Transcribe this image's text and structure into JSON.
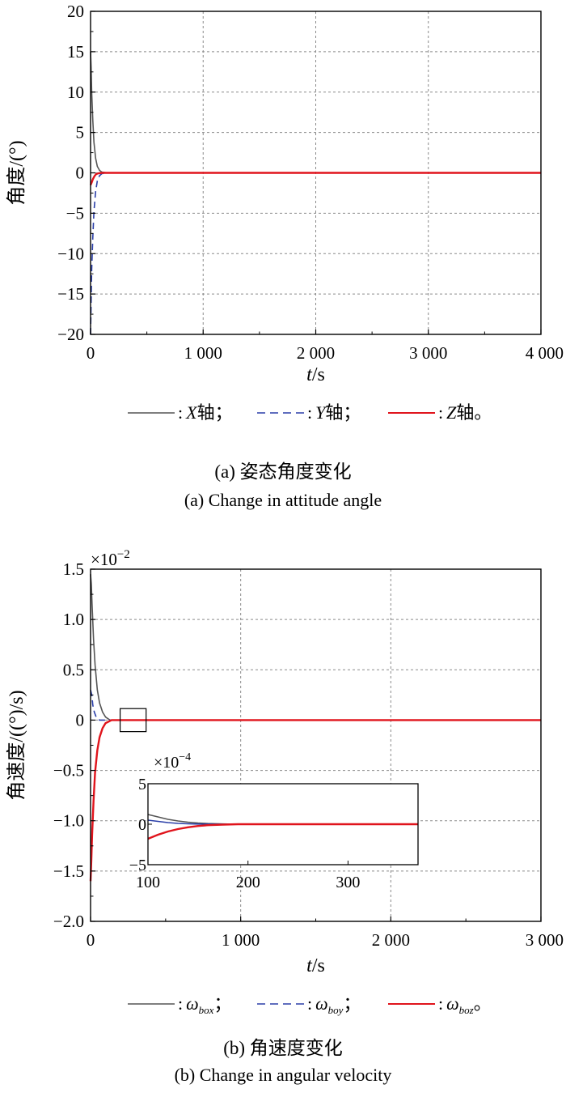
{
  "chart_data": [
    {
      "type": "line",
      "ylabel": "角度/(°)",
      "xlabel_italic": "t",
      "xlabel_unit": "/s",
      "xlim": [
        0,
        4000
      ],
      "ylim": [
        -20,
        20
      ],
      "xticks": [
        0,
        1000,
        2000,
        3000,
        4000
      ],
      "xtick_labels": [
        "0",
        "1 000",
        "2 000",
        "3 000",
        "4 000"
      ],
      "yticks": [
        -20,
        -15,
        -10,
        -5,
        0,
        5,
        10,
        15,
        20
      ],
      "yticks_labels": [
        "−20",
        "−15",
        "−10",
        "−5",
        "0",
        "5",
        "10",
        "15",
        "20"
      ],
      "grid": true,
      "legend_position": "bottom",
      "series": [
        {
          "name": "X轴",
          "color": "#555555",
          "dash": "solid",
          "x": [
            0,
            5,
            10,
            20,
            30,
            45,
            60,
            80,
            100,
            150,
            4000
          ],
          "y": [
            15,
            13,
            10,
            6.5,
            3.8,
            1.8,
            0.8,
            0.3,
            0.1,
            0,
            0
          ]
        },
        {
          "name": "Y轴",
          "color": "#2b3fa8",
          "dash": "dashed",
          "x": [
            0,
            5,
            10,
            20,
            30,
            45,
            60,
            80,
            100,
            150,
            4000
          ],
          "y": [
            -20,
            -16,
            -12,
            -8,
            -4.8,
            -2.3,
            -1,
            -0.35,
            -0.1,
            0,
            0
          ]
        },
        {
          "name": "Z轴",
          "color": "#e0141c",
          "dash": "solid",
          "x": [
            0,
            10,
            20,
            35,
            50,
            70,
            100,
            4000
          ],
          "y": [
            -1.5,
            -1.2,
            -0.8,
            -0.4,
            -0.15,
            -0.05,
            0,
            0
          ]
        }
      ],
      "legend": [
        {
          "label": "X",
          "suffix": "轴；"
        },
        {
          "label": "Y",
          "suffix": "轴；"
        },
        {
          "label": "Z",
          "suffix": "轴。"
        }
      ],
      "caption_cn": "(a) 姿态角度变化",
      "caption_en": "(a) Change in attitude angle"
    },
    {
      "type": "line",
      "ylabel": "角速度/((°)/s)",
      "xlabel_italic": "t",
      "xlabel_unit": "/s",
      "y_scale_label": "×10",
      "y_scale_exp": "−2",
      "xlim": [
        0,
        3000
      ],
      "ylim": [
        -2.0,
        1.5
      ],
      "xticks": [
        0,
        1000,
        2000,
        3000
      ],
      "xtick_labels": [
        "0",
        "1 000",
        "2 000",
        "3 000"
      ],
      "yticks": [
        -2.0,
        -1.5,
        -1.0,
        -0.5,
        0,
        0.5,
        1.0,
        1.5
      ],
      "yticks_labels": [
        "−2.0",
        "−1.5",
        "−1.0",
        "−0.5",
        "0",
        "0.5",
        "1.0",
        "1.5"
      ],
      "grid": true,
      "legend_position": "bottom",
      "series": [
        {
          "name": "ω_box",
          "color": "#555555",
          "dash": "solid",
          "x": [
            0,
            5,
            10,
            20,
            30,
            45,
            60,
            80,
            100,
            130,
            3000
          ],
          "y": [
            1.45,
            1.35,
            1.15,
            0.8,
            0.55,
            0.3,
            0.17,
            0.08,
            0.03,
            0,
            0
          ]
        },
        {
          "name": "ω_boy",
          "color": "#2b3fa8",
          "dash": "dashed",
          "x": [
            0,
            8,
            15,
            25,
            40,
            60,
            3000
          ],
          "y": [
            0.3,
            0.25,
            0.15,
            0.08,
            0.02,
            0,
            0
          ]
        },
        {
          "name": "ω_boz",
          "color": "#e0141c",
          "dash": "solid",
          "x": [
            0,
            5,
            10,
            20,
            30,
            45,
            60,
            80,
            100,
            140,
            3000
          ],
          "y": [
            -1.6,
            -1.4,
            -1.15,
            -0.8,
            -0.52,
            -0.3,
            -0.17,
            -0.08,
            -0.03,
            0,
            0
          ]
        }
      ],
      "legend": [
        {
          "label": "ω",
          "sub": "box",
          "suffix": "；"
        },
        {
          "label": "ω",
          "sub": "boy",
          "suffix": "；"
        },
        {
          "label": "ω",
          "sub": "boz",
          "suffix": "。"
        }
      ],
      "zoom_box": {
        "x": [
          100,
          370
        ],
        "y": [
          -0.05,
          0.05
        ]
      },
      "inset": {
        "xlim": [
          100,
          370
        ],
        "ylim": [
          -5,
          5
        ],
        "xticks": [
          100,
          200,
          300
        ],
        "xtick_labels": [
          "100",
          "200",
          "300"
        ],
        "yticks": [
          -5,
          0,
          5
        ],
        "ytick_labels": [
          "−5",
          "0",
          "5"
        ],
        "scale_label": "×10",
        "scale_exp": "−4",
        "series": [
          {
            "name": "ω_box",
            "color": "#555555",
            "x": [
              100,
              110,
              120,
              130,
              140,
              150,
              160,
              175,
              190,
              370
            ],
            "y": [
              1.2,
              0.9,
              0.6,
              0.4,
              0.25,
              0.15,
              0.08,
              0.03,
              0,
              0
            ]
          },
          {
            "name": "ω_boy",
            "color": "#2b3fa8",
            "x": [
              100,
              110,
              120,
              130,
              140,
              150,
              160,
              175,
              190,
              370
            ],
            "y": [
              0.5,
              0.35,
              0.2,
              0.1,
              0.05,
              0.02,
              0.01,
              0,
              0,
              0
            ]
          },
          {
            "name": "ω_boz",
            "color": "#e0141c",
            "x": [
              100,
              110,
              120,
              130,
              140,
              150,
              160,
              175,
              190,
              370
            ],
            "y": [
              -1.8,
              -1.3,
              -0.9,
              -0.6,
              -0.38,
              -0.22,
              -0.12,
              -0.05,
              0,
              0
            ]
          }
        ]
      },
      "caption_cn": "(b) 角速度变化",
      "caption_en": "(b) Change in angular velocity"
    }
  ]
}
